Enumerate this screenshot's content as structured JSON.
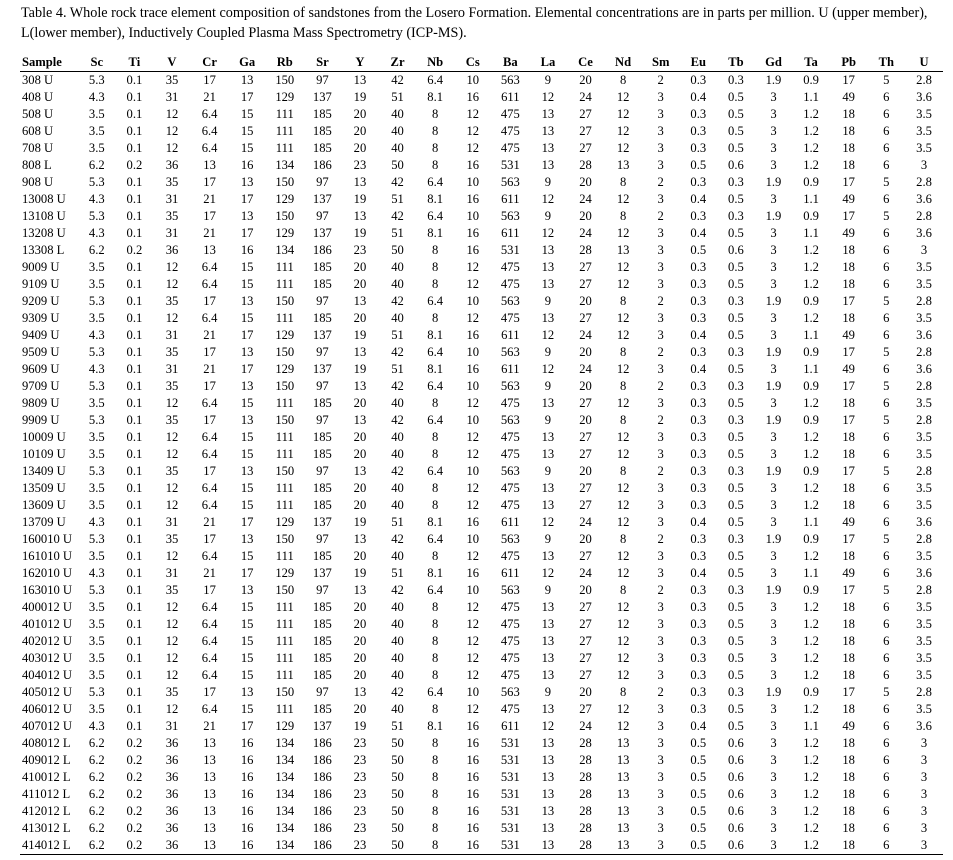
{
  "caption": "Table 4. Whole rock trace element composition of sandstones from the Losero Formation. Elemental concentrations are in parts per million. U (upper member), L(lower member), Inductively Coupled Plasma Mass Spectrometry (ICP-MS).",
  "columns": [
    "Sample",
    "Sc",
    "Ti",
    "V",
    "Cr",
    "Ga",
    "Rb",
    "Sr",
    "Y",
    "Zr",
    "Nb",
    "Cs",
    "Ba",
    "La",
    "Ce",
    "Nd",
    "Sm",
    "Eu",
    "Tb",
    "Gd",
    "Ta",
    "Pb",
    "Th",
    "U"
  ],
  "rows": [
    [
      "308 U",
      "5.3",
      "0.1",
      "35",
      "17",
      "13",
      "150",
      "97",
      "13",
      "42",
      "6.4",
      "10",
      "563",
      "9",
      "20",
      "8",
      "2",
      "0.3",
      "0.3",
      "1.9",
      "0.9",
      "17",
      "5",
      "2.8"
    ],
    [
      "408 U",
      "4.3",
      "0.1",
      "31",
      "21",
      "17",
      "129",
      "137",
      "19",
      "51",
      "8.1",
      "16",
      "611",
      "12",
      "24",
      "12",
      "3",
      "0.4",
      "0.5",
      "3",
      "1.1",
      "49",
      "6",
      "3.6"
    ],
    [
      "508 U",
      "3.5",
      "0.1",
      "12",
      "6.4",
      "15",
      "111",
      "185",
      "20",
      "40",
      "8",
      "12",
      "475",
      "13",
      "27",
      "12",
      "3",
      "0.3",
      "0.5",
      "3",
      "1.2",
      "18",
      "6",
      "3.5"
    ],
    [
      "608 U",
      "3.5",
      "0.1",
      "12",
      "6.4",
      "15",
      "111",
      "185",
      "20",
      "40",
      "8",
      "12",
      "475",
      "13",
      "27",
      "12",
      "3",
      "0.3",
      "0.5",
      "3",
      "1.2",
      "18",
      "6",
      "3.5"
    ],
    [
      "708 U",
      "3.5",
      "0.1",
      "12",
      "6.4",
      "15",
      "111",
      "185",
      "20",
      "40",
      "8",
      "12",
      "475",
      "13",
      "27",
      "12",
      "3",
      "0.3",
      "0.5",
      "3",
      "1.2",
      "18",
      "6",
      "3.5"
    ],
    [
      "808 L",
      "6.2",
      "0.2",
      "36",
      "13",
      "16",
      "134",
      "186",
      "23",
      "50",
      "8",
      "16",
      "531",
      "13",
      "28",
      "13",
      "3",
      "0.5",
      "0.6",
      "3",
      "1.2",
      "18",
      "6",
      "3"
    ],
    [
      "908 U",
      "5.3",
      "0.1",
      "35",
      "17",
      "13",
      "150",
      "97",
      "13",
      "42",
      "6.4",
      "10",
      "563",
      "9",
      "20",
      "8",
      "2",
      "0.3",
      "0.3",
      "1.9",
      "0.9",
      "17",
      "5",
      "2.8"
    ],
    [
      "13008 U",
      "4.3",
      "0.1",
      "31",
      "21",
      "17",
      "129",
      "137",
      "19",
      "51",
      "8.1",
      "16",
      "611",
      "12",
      "24",
      "12",
      "3",
      "0.4",
      "0.5",
      "3",
      "1.1",
      "49",
      "6",
      "3.6"
    ],
    [
      "13108 U",
      "5.3",
      "0.1",
      "35",
      "17",
      "13",
      "150",
      "97",
      "13",
      "42",
      "6.4",
      "10",
      "563",
      "9",
      "20",
      "8",
      "2",
      "0.3",
      "0.3",
      "1.9",
      "0.9",
      "17",
      "5",
      "2.8"
    ],
    [
      "13208 U",
      "4.3",
      "0.1",
      "31",
      "21",
      "17",
      "129",
      "137",
      "19",
      "51",
      "8.1",
      "16",
      "611",
      "12",
      "24",
      "12",
      "3",
      "0.4",
      "0.5",
      "3",
      "1.1",
      "49",
      "6",
      "3.6"
    ],
    [
      "13308 L",
      "6.2",
      "0.2",
      "36",
      "13",
      "16",
      "134",
      "186",
      "23",
      "50",
      "8",
      "16",
      "531",
      "13",
      "28",
      "13",
      "3",
      "0.5",
      "0.6",
      "3",
      "1.2",
      "18",
      "6",
      "3"
    ],
    [
      "9009 U",
      "3.5",
      "0.1",
      "12",
      "6.4",
      "15",
      "111",
      "185",
      "20",
      "40",
      "8",
      "12",
      "475",
      "13",
      "27",
      "12",
      "3",
      "0.3",
      "0.5",
      "3",
      "1.2",
      "18",
      "6",
      "3.5"
    ],
    [
      "9109 U",
      "3.5",
      "0.1",
      "12",
      "6.4",
      "15",
      "111",
      "185",
      "20",
      "40",
      "8",
      "12",
      "475",
      "13",
      "27",
      "12",
      "3",
      "0.3",
      "0.5",
      "3",
      "1.2",
      "18",
      "6",
      "3.5"
    ],
    [
      "9209 U",
      "5.3",
      "0.1",
      "35",
      "17",
      "13",
      "150",
      "97",
      "13",
      "42",
      "6.4",
      "10",
      "563",
      "9",
      "20",
      "8",
      "2",
      "0.3",
      "0.3",
      "1.9",
      "0.9",
      "17",
      "5",
      "2.8"
    ],
    [
      "9309 U",
      "3.5",
      "0.1",
      "12",
      "6.4",
      "15",
      "111",
      "185",
      "20",
      "40",
      "8",
      "12",
      "475",
      "13",
      "27",
      "12",
      "3",
      "0.3",
      "0.5",
      "3",
      "1.2",
      "18",
      "6",
      "3.5"
    ],
    [
      "9409 U",
      "4.3",
      "0.1",
      "31",
      "21",
      "17",
      "129",
      "137",
      "19",
      "51",
      "8.1",
      "16",
      "611",
      "12",
      "24",
      "12",
      "3",
      "0.4",
      "0.5",
      "3",
      "1.1",
      "49",
      "6",
      "3.6"
    ],
    [
      "9509 U",
      "5.3",
      "0.1",
      "35",
      "17",
      "13",
      "150",
      "97",
      "13",
      "42",
      "6.4",
      "10",
      "563",
      "9",
      "20",
      "8",
      "2",
      "0.3",
      "0.3",
      "1.9",
      "0.9",
      "17",
      "5",
      "2.8"
    ],
    [
      "9609 U",
      "4.3",
      "0.1",
      "31",
      "21",
      "17",
      "129",
      "137",
      "19",
      "51",
      "8.1",
      "16",
      "611",
      "12",
      "24",
      "12",
      "3",
      "0.4",
      "0.5",
      "3",
      "1.1",
      "49",
      "6",
      "3.6"
    ],
    [
      "9709 U",
      "5.3",
      "0.1",
      "35",
      "17",
      "13",
      "150",
      "97",
      "13",
      "42",
      "6.4",
      "10",
      "563",
      "9",
      "20",
      "8",
      "2",
      "0.3",
      "0.3",
      "1.9",
      "0.9",
      "17",
      "5",
      "2.8"
    ],
    [
      "9809 U",
      "3.5",
      "0.1",
      "12",
      "6.4",
      "15",
      "111",
      "185",
      "20",
      "40",
      "8",
      "12",
      "475",
      "13",
      "27",
      "12",
      "3",
      "0.3",
      "0.5",
      "3",
      "1.2",
      "18",
      "6",
      "3.5"
    ],
    [
      "9909 U",
      "5.3",
      "0.1",
      "35",
      "17",
      "13",
      "150",
      "97",
      "13",
      "42",
      "6.4",
      "10",
      "563",
      "9",
      "20",
      "8",
      "2",
      "0.3",
      "0.3",
      "1.9",
      "0.9",
      "17",
      "5",
      "2.8"
    ],
    [
      "10009 U",
      "3.5",
      "0.1",
      "12",
      "6.4",
      "15",
      "111",
      "185",
      "20",
      "40",
      "8",
      "12",
      "475",
      "13",
      "27",
      "12",
      "3",
      "0.3",
      "0.5",
      "3",
      "1.2",
      "18",
      "6",
      "3.5"
    ],
    [
      "10109 U",
      "3.5",
      "0.1",
      "12",
      "6.4",
      "15",
      "111",
      "185",
      "20",
      "40",
      "8",
      "12",
      "475",
      "13",
      "27",
      "12",
      "3",
      "0.3",
      "0.5",
      "3",
      "1.2",
      "18",
      "6",
      "3.5"
    ],
    [
      "13409 U",
      "5.3",
      "0.1",
      "35",
      "17",
      "13",
      "150",
      "97",
      "13",
      "42",
      "6.4",
      "10",
      "563",
      "9",
      "20",
      "8",
      "2",
      "0.3",
      "0.3",
      "1.9",
      "0.9",
      "17",
      "5",
      "2.8"
    ],
    [
      "13509 U",
      "3.5",
      "0.1",
      "12",
      "6.4",
      "15",
      "111",
      "185",
      "20",
      "40",
      "8",
      "12",
      "475",
      "13",
      "27",
      "12",
      "3",
      "0.3",
      "0.5",
      "3",
      "1.2",
      "18",
      "6",
      "3.5"
    ],
    [
      "13609 U",
      "3.5",
      "0.1",
      "12",
      "6.4",
      "15",
      "111",
      "185",
      "20",
      "40",
      "8",
      "12",
      "475",
      "13",
      "27",
      "12",
      "3",
      "0.3",
      "0.5",
      "3",
      "1.2",
      "18",
      "6",
      "3.5"
    ],
    [
      "13709 U",
      "4.3",
      "0.1",
      "31",
      "21",
      "17",
      "129",
      "137",
      "19",
      "51",
      "8.1",
      "16",
      "611",
      "12",
      "24",
      "12",
      "3",
      "0.4",
      "0.5",
      "3",
      "1.1",
      "49",
      "6",
      "3.6"
    ],
    [
      "160010 U",
      "5.3",
      "0.1",
      "35",
      "17",
      "13",
      "150",
      "97",
      "13",
      "42",
      "6.4",
      "10",
      "563",
      "9",
      "20",
      "8",
      "2",
      "0.3",
      "0.3",
      "1.9",
      "0.9",
      "17",
      "5",
      "2.8"
    ],
    [
      "161010 U",
      "3.5",
      "0.1",
      "12",
      "6.4",
      "15",
      "111",
      "185",
      "20",
      "40",
      "8",
      "12",
      "475",
      "13",
      "27",
      "12",
      "3",
      "0.3",
      "0.5",
      "3",
      "1.2",
      "18",
      "6",
      "3.5"
    ],
    [
      "162010 U",
      "4.3",
      "0.1",
      "31",
      "21",
      "17",
      "129",
      "137",
      "19",
      "51",
      "8.1",
      "16",
      "611",
      "12",
      "24",
      "12",
      "3",
      "0.4",
      "0.5",
      "3",
      "1.1",
      "49",
      "6",
      "3.6"
    ],
    [
      "163010 U",
      "5.3",
      "0.1",
      "35",
      "17",
      "13",
      "150",
      "97",
      "13",
      "42",
      "6.4",
      "10",
      "563",
      "9",
      "20",
      "8",
      "2",
      "0.3",
      "0.3",
      "1.9",
      "0.9",
      "17",
      "5",
      "2.8"
    ],
    [
      "400012 U",
      "3.5",
      "0.1",
      "12",
      "6.4",
      "15",
      "111",
      "185",
      "20",
      "40",
      "8",
      "12",
      "475",
      "13",
      "27",
      "12",
      "3",
      "0.3",
      "0.5",
      "3",
      "1.2",
      "18",
      "6",
      "3.5"
    ],
    [
      "401012 U",
      "3.5",
      "0.1",
      "12",
      "6.4",
      "15",
      "111",
      "185",
      "20",
      "40",
      "8",
      "12",
      "475",
      "13",
      "27",
      "12",
      "3",
      "0.3",
      "0.5",
      "3",
      "1.2",
      "18",
      "6",
      "3.5"
    ],
    [
      "402012 U",
      "3.5",
      "0.1",
      "12",
      "6.4",
      "15",
      "111",
      "185",
      "20",
      "40",
      "8",
      "12",
      "475",
      "13",
      "27",
      "12",
      "3",
      "0.3",
      "0.5",
      "3",
      "1.2",
      "18",
      "6",
      "3.5"
    ],
    [
      "403012 U",
      "3.5",
      "0.1",
      "12",
      "6.4",
      "15",
      "111",
      "185",
      "20",
      "40",
      "8",
      "12",
      "475",
      "13",
      "27",
      "12",
      "3",
      "0.3",
      "0.5",
      "3",
      "1.2",
      "18",
      "6",
      "3.5"
    ],
    [
      "404012 U",
      "3.5",
      "0.1",
      "12",
      "6.4",
      "15",
      "111",
      "185",
      "20",
      "40",
      "8",
      "12",
      "475",
      "13",
      "27",
      "12",
      "3",
      "0.3",
      "0.5",
      "3",
      "1.2",
      "18",
      "6",
      "3.5"
    ],
    [
      "405012 U",
      "5.3",
      "0.1",
      "35",
      "17",
      "13",
      "150",
      "97",
      "13",
      "42",
      "6.4",
      "10",
      "563",
      "9",
      "20",
      "8",
      "2",
      "0.3",
      "0.3",
      "1.9",
      "0.9",
      "17",
      "5",
      "2.8"
    ],
    [
      "406012 U",
      "3.5",
      "0.1",
      "12",
      "6.4",
      "15",
      "111",
      "185",
      "20",
      "40",
      "8",
      "12",
      "475",
      "13",
      "27",
      "12",
      "3",
      "0.3",
      "0.5",
      "3",
      "1.2",
      "18",
      "6",
      "3.5"
    ],
    [
      "407012 U",
      "4.3",
      "0.1",
      "31",
      "21",
      "17",
      "129",
      "137",
      "19",
      "51",
      "8.1",
      "16",
      "611",
      "12",
      "24",
      "12",
      "3",
      "0.4",
      "0.5",
      "3",
      "1.1",
      "49",
      "6",
      "3.6"
    ],
    [
      "408012 L",
      "6.2",
      "0.2",
      "36",
      "13",
      "16",
      "134",
      "186",
      "23",
      "50",
      "8",
      "16",
      "531",
      "13",
      "28",
      "13",
      "3",
      "0.5",
      "0.6",
      "3",
      "1.2",
      "18",
      "6",
      "3"
    ],
    [
      "409012 L",
      "6.2",
      "0.2",
      "36",
      "13",
      "16",
      "134",
      "186",
      "23",
      "50",
      "8",
      "16",
      "531",
      "13",
      "28",
      "13",
      "3",
      "0.5",
      "0.6",
      "3",
      "1.2",
      "18",
      "6",
      "3"
    ],
    [
      "410012 L",
      "6.2",
      "0.2",
      "36",
      "13",
      "16",
      "134",
      "186",
      "23",
      "50",
      "8",
      "16",
      "531",
      "13",
      "28",
      "13",
      "3",
      "0.5",
      "0.6",
      "3",
      "1.2",
      "18",
      "6",
      "3"
    ],
    [
      "411012 L",
      "6.2",
      "0.2",
      "36",
      "13",
      "16",
      "134",
      "186",
      "23",
      "50",
      "8",
      "16",
      "531",
      "13",
      "28",
      "13",
      "3",
      "0.5",
      "0.6",
      "3",
      "1.2",
      "18",
      "6",
      "3"
    ],
    [
      "412012 L",
      "6.2",
      "0.2",
      "36",
      "13",
      "16",
      "134",
      "186",
      "23",
      "50",
      "8",
      "16",
      "531",
      "13",
      "28",
      "13",
      "3",
      "0.5",
      "0.6",
      "3",
      "1.2",
      "18",
      "6",
      "3"
    ],
    [
      "413012 L",
      "6.2",
      "0.2",
      "36",
      "13",
      "16",
      "134",
      "186",
      "23",
      "50",
      "8",
      "16",
      "531",
      "13",
      "28",
      "13",
      "3",
      "0.5",
      "0.6",
      "3",
      "1.2",
      "18",
      "6",
      "3"
    ],
    [
      "414012 L",
      "6.2",
      "0.2",
      "36",
      "13",
      "16",
      "134",
      "186",
      "23",
      "50",
      "8",
      "16",
      "531",
      "13",
      "28",
      "13",
      "3",
      "0.5",
      "0.6",
      "3",
      "1.2",
      "18",
      "6",
      "3"
    ]
  ]
}
